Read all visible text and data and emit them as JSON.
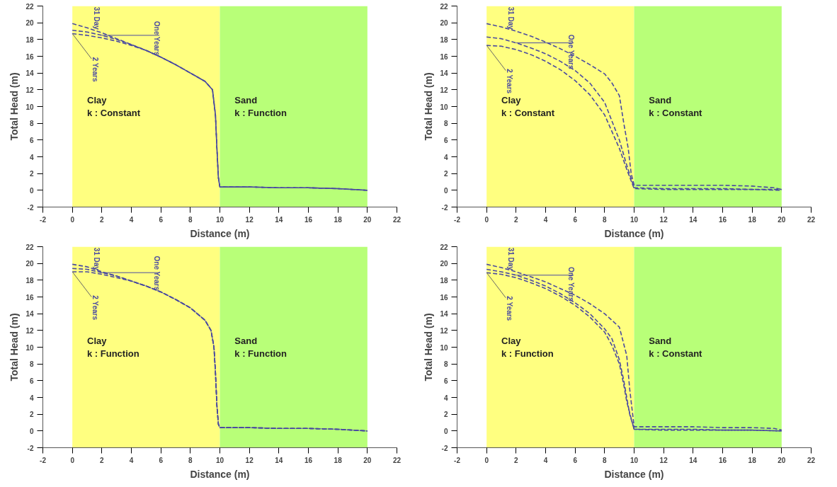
{
  "chart_data": [
    {
      "type": "line",
      "xlabel": "Distance (m)",
      "ylabel": "Total Head (m)",
      "xlim": [
        -2,
        22
      ],
      "ylim": [
        -2,
        22
      ],
      "xticks": [
        -2,
        0,
        2,
        4,
        6,
        8,
        10,
        12,
        14,
        16,
        18,
        20,
        22
      ],
      "yticks": [
        -2,
        0,
        2,
        4,
        6,
        8,
        10,
        12,
        14,
        16,
        18,
        20,
        22
      ],
      "grid": false,
      "line_style": "dashed",
      "marker": "none",
      "bands": [
        {
          "axis": "x",
          "from": 0,
          "to": 10,
          "label": "Clay\n k : Constant",
          "color": "#ffff80"
        },
        {
          "axis": "x",
          "from": 10,
          "to": 20,
          "label": "Sand\n   k : Function",
          "color": "#b8ff78"
        }
      ],
      "series": [
        {
          "name": "31 Day",
          "color": "#4a4aa0",
          "x": [
            0,
            1,
            2,
            3,
            4,
            5,
            6,
            7,
            8,
            9,
            9.5,
            9.7,
            9.8,
            9.9,
            10,
            12,
            14,
            16,
            18,
            20
          ],
          "values": [
            19.9,
            19.4,
            18.8,
            18.1,
            17.4,
            16.7,
            15.9,
            15.0,
            14.0,
            13.0,
            12.0,
            9,
            5,
            1.5,
            0.4,
            0.4,
            0.3,
            0.3,
            0.2,
            0.0
          ]
        },
        {
          "name": "One Years",
          "color": "#4a4aa0",
          "x": [
            0,
            1,
            2,
            3,
            4,
            5,
            6,
            7,
            8,
            9,
            9.5,
            9.7,
            9.8,
            9.9,
            10,
            12,
            14,
            16,
            18,
            20
          ],
          "values": [
            19.1,
            18.9,
            18.5,
            18.0,
            17.4,
            16.7,
            15.9,
            15.0,
            14.0,
            13.0,
            12.0,
            9,
            5,
            1.5,
            0.4,
            0.4,
            0.3,
            0.3,
            0.2,
            0.0
          ]
        },
        {
          "name": "2 Years",
          "color": "#4a4aa0",
          "x": [
            0,
            1,
            2,
            3,
            4,
            5,
            6,
            7,
            8,
            9,
            9.5,
            9.7,
            9.8,
            9.9,
            10,
            12,
            14,
            16,
            18,
            20
          ],
          "values": [
            18.7,
            18.5,
            18.2,
            17.8,
            17.3,
            16.7,
            15.9,
            15.0,
            14.0,
            13.0,
            12.0,
            9,
            5,
            1.5,
            0.4,
            0.4,
            0.3,
            0.3,
            0.2,
            0.0
          ]
        }
      ]
    },
    {
      "type": "line",
      "xlabel": "Distance (m)",
      "ylabel": "Total Head (m)",
      "xlim": [
        -2,
        22
      ],
      "ylim": [
        -2,
        22
      ],
      "xticks": [
        -2,
        0,
        2,
        4,
        6,
        8,
        10,
        12,
        14,
        16,
        18,
        20,
        22
      ],
      "yticks": [
        -2,
        0,
        2,
        4,
        6,
        8,
        10,
        12,
        14,
        16,
        18,
        20,
        22
      ],
      "grid": false,
      "line_style": "dashed",
      "marker": "none",
      "bands": [
        {
          "axis": "x",
          "from": 0,
          "to": 10,
          "label": "Clay\n k : Constant",
          "color": "#ffff80"
        },
        {
          "axis": "x",
          "from": 10,
          "to": 20,
          "label": "Sand\n   k : Constant",
          "color": "#b8ff78"
        }
      ],
      "series": [
        {
          "name": "31 Day",
          "color": "#4a4aa0",
          "x": [
            0,
            1,
            2,
            3,
            4,
            5,
            6,
            7,
            8,
            8.5,
            9,
            9.3,
            9.6,
            9.8,
            10,
            12,
            14,
            16,
            18,
            19.5,
            20
          ],
          "values": [
            19.9,
            19.5,
            19.0,
            18.4,
            17.7,
            16.9,
            16.0,
            15.0,
            13.9,
            12.8,
            11.3,
            8,
            5,
            2,
            0.6,
            0.6,
            0.6,
            0.6,
            0.5,
            0.3,
            0.1
          ]
        },
        {
          "name": "One Years",
          "color": "#4a4aa0",
          "x": [
            0,
            1,
            2,
            3,
            4,
            5,
            6,
            7,
            8,
            9,
            9.5,
            10,
            12,
            14,
            16,
            18,
            20
          ],
          "values": [
            18.3,
            18.1,
            17.6,
            17.0,
            16.3,
            15.4,
            14.3,
            12.8,
            10.5,
            6.0,
            3.0,
            0.3,
            0.2,
            0.2,
            0.2,
            0.1,
            0.1
          ]
        },
        {
          "name": "2 Years",
          "color": "#4a4aa0",
          "x": [
            0,
            1,
            2,
            3,
            4,
            5,
            6,
            7,
            8,
            9,
            9.5,
            10,
            12,
            14,
            16,
            18,
            20
          ],
          "values": [
            17.3,
            17.2,
            16.8,
            16.2,
            15.4,
            14.4,
            13.1,
            11.4,
            9.0,
            5.0,
            2.5,
            0.2,
            0.1,
            0.1,
            0.1,
            0.1,
            0.0
          ]
        }
      ]
    },
    {
      "type": "line",
      "xlabel": "Distance (m)",
      "ylabel": "Total Head (m)",
      "xlim": [
        -2,
        22
      ],
      "ylim": [
        -2,
        22
      ],
      "xticks": [
        -2,
        0,
        2,
        4,
        6,
        8,
        10,
        12,
        14,
        16,
        18,
        20,
        22
      ],
      "yticks": [
        -2,
        0,
        2,
        4,
        6,
        8,
        10,
        12,
        14,
        16,
        18,
        20,
        22
      ],
      "grid": false,
      "line_style": "dashed",
      "marker": "none",
      "bands": [
        {
          "axis": "x",
          "from": 0,
          "to": 10,
          "label": "Clay\n k : Function",
          "color": "#ffff80"
        },
        {
          "axis": "x",
          "from": 10,
          "to": 20,
          "label": "Sand\n   k : Function",
          "color": "#b8ff78"
        }
      ],
      "series": [
        {
          "name": "31 Day",
          "color": "#4a4aa0",
          "x": [
            0,
            1,
            2,
            3,
            4,
            5,
            6,
            7,
            8,
            9,
            9.4,
            9.6,
            9.7,
            9.8,
            9.9,
            10,
            12,
            14,
            16,
            18,
            20
          ],
          "values": [
            19.9,
            19.6,
            19.0,
            18.5,
            17.9,
            17.3,
            16.6,
            15.7,
            14.7,
            13.2,
            12.0,
            10,
            7,
            3,
            0.8,
            0.4,
            0.4,
            0.3,
            0.3,
            0.2,
            0.0
          ]
        },
        {
          "name": "One Years",
          "color": "#4a4aa0",
          "x": [
            0,
            1,
            2,
            3,
            4,
            5,
            6,
            7,
            8,
            9,
            9.4,
            9.6,
            9.7,
            9.8,
            9.9,
            10,
            12,
            14,
            16,
            18,
            20
          ],
          "values": [
            19.4,
            19.3,
            18.9,
            18.5,
            17.9,
            17.3,
            16.6,
            15.7,
            14.7,
            13.2,
            12.0,
            10,
            7,
            3,
            0.8,
            0.4,
            0.4,
            0.3,
            0.3,
            0.2,
            0.0
          ]
        },
        {
          "name": "2 Years",
          "color": "#4a4aa0",
          "x": [
            0,
            1,
            2,
            3,
            4,
            5,
            6,
            7,
            8,
            9,
            9.4,
            9.6,
            9.7,
            9.8,
            9.9,
            10,
            12,
            14,
            16,
            18,
            20
          ],
          "values": [
            19.0,
            19.0,
            18.7,
            18.3,
            17.9,
            17.3,
            16.6,
            15.7,
            14.7,
            13.2,
            12.0,
            10,
            7,
            3,
            0.8,
            0.4,
            0.4,
            0.3,
            0.3,
            0.2,
            0.0
          ]
        }
      ]
    },
    {
      "type": "line",
      "xlabel": "Distance (m)",
      "ylabel": "Total Head (m)",
      "xlim": [
        -2,
        22
      ],
      "ylim": [
        -2,
        22
      ],
      "xticks": [
        -2,
        0,
        2,
        4,
        6,
        8,
        10,
        12,
        14,
        16,
        18,
        20,
        22
      ],
      "yticks": [
        -2,
        0,
        2,
        4,
        6,
        8,
        10,
        12,
        14,
        16,
        18,
        20,
        22
      ],
      "grid": false,
      "line_style": "dashed",
      "marker": "none",
      "bands": [
        {
          "axis": "x",
          "from": 0,
          "to": 10,
          "label": "Clay\n k : Function",
          "color": "#ffff80"
        },
        {
          "axis": "x",
          "from": 10,
          "to": 20,
          "label": "Sand\n   k : Constant",
          "color": "#b8ff78"
        }
      ],
      "series": [
        {
          "name": "31 Day",
          "color": "#4a4aa0",
          "x": [
            0,
            1,
            2,
            3,
            4,
            5,
            6,
            7,
            8,
            9,
            9.5,
            9.7,
            9.9,
            10,
            12,
            14,
            16,
            18,
            19.5,
            20
          ],
          "values": [
            19.9,
            19.5,
            19.0,
            18.4,
            17.8,
            17.0,
            16.2,
            15.2,
            14.0,
            12.4,
            9,
            5,
            2,
            0.5,
            0.5,
            0.5,
            0.4,
            0.4,
            0.3,
            0.1
          ]
        },
        {
          "name": "One Years",
          "color": "#4a4aa0",
          "x": [
            0,
            1,
            2,
            3,
            4,
            5,
            6,
            7,
            8,
            8.5,
            9,
            9.3,
            9.5,
            9.7,
            10,
            12,
            14,
            16,
            18,
            20
          ],
          "values": [
            19.3,
            19.0,
            18.6,
            18.0,
            17.3,
            16.4,
            15.3,
            14.0,
            12.2,
            11,
            8.5,
            6,
            4,
            2,
            0.2,
            0.2,
            0.2,
            0.1,
            0.1,
            0.0
          ]
        },
        {
          "name": "2 Years",
          "color": "#4a4aa0",
          "x": [
            0,
            1,
            2,
            3,
            4,
            5,
            6,
            7,
            8,
            8.5,
            9,
            9.3,
            9.5,
            9.8,
            10,
            12,
            14,
            16,
            18,
            20
          ],
          "values": [
            18.9,
            18.7,
            18.3,
            17.7,
            17.0,
            16.1,
            15.0,
            13.6,
            11.8,
            10.2,
            8,
            5.5,
            3.5,
            1.5,
            0.2,
            0.1,
            0.1,
            0.1,
            0.1,
            0.0
          ]
        }
      ]
    }
  ]
}
